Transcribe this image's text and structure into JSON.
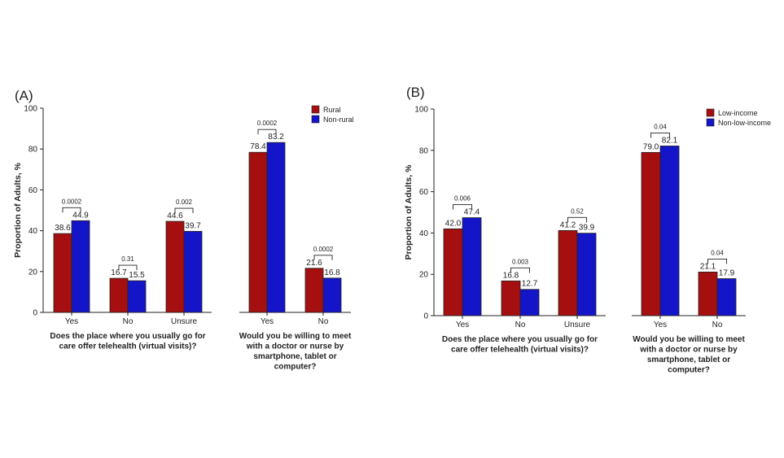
{
  "chart_data": [
    {
      "type": "bar",
      "panel_label": "(A)",
      "ylabel": "Proportion of Adults, %",
      "ylim": [
        0,
        100
      ],
      "yticks": [
        "0",
        "20",
        "40",
        "60",
        "80",
        "100"
      ],
      "grid": false,
      "legend_position": "top-right",
      "colors": [
        "#a50f0f",
        "#1414c8"
      ],
      "series_names": [
        "Rural",
        "Non-rural"
      ],
      "groups": [
        {
          "question": [
            "Does the place where you usually go for",
            "care offer telehealth (virtual visits)?"
          ],
          "categories": [
            {
              "label": "Yes",
              "values": [
                38.6,
                44.9
              ],
              "value_labels": [
                "38.6",
                "44.9"
              ],
              "p_value": "0.0002"
            },
            {
              "label": "No",
              "values": [
                16.7,
                15.5
              ],
              "value_labels": [
                "16.7",
                "15.5"
              ],
              "p_value": "0.31"
            },
            {
              "label": "Unsure",
              "values": [
                44.6,
                39.7
              ],
              "value_labels": [
                "44.6",
                "39.7"
              ],
              "p_value": "0.002"
            }
          ]
        },
        {
          "question": [
            "Would you be willing to meet",
            "with a doctor or nurse by",
            "smartphone, tablet or",
            "computer?"
          ],
          "categories": [
            {
              "label": "Yes",
              "values": [
                78.4,
                83.2
              ],
              "value_labels": [
                "78.4",
                "83.2"
              ],
              "p_value": "0.0002"
            },
            {
              "label": "No",
              "values": [
                21.6,
                16.8
              ],
              "value_labels": [
                "21.6",
                "16.8"
              ],
              "p_value": "0.0002"
            }
          ]
        }
      ]
    },
    {
      "type": "bar",
      "panel_label": "(B)",
      "ylabel": "Proportion of Adults, %",
      "ylim": [
        0,
        100
      ],
      "yticks": [
        "0",
        "20",
        "40",
        "60",
        "80",
        "100"
      ],
      "grid": false,
      "legend_position": "top-right",
      "colors": [
        "#a50f0f",
        "#1414c8"
      ],
      "series_names": [
        "Low-income",
        "Non-low-income"
      ],
      "groups": [
        {
          "question": [
            "Does the place where you usually go for",
            "care offer telehealth (virtual visits)?"
          ],
          "categories": [
            {
              "label": "Yes",
              "values": [
                42.0,
                47.4
              ],
              "value_labels": [
                "42.0",
                "47.4"
              ],
              "p_value": "0.006"
            },
            {
              "label": "No",
              "values": [
                16.8,
                12.7
              ],
              "value_labels": [
                "16.8",
                "12.7"
              ],
              "p_value": "0.003"
            },
            {
              "label": "Unsure",
              "values": [
                41.2,
                39.9
              ],
              "value_labels": [
                "41.2",
                "39.9"
              ],
              "p_value": "0.52"
            }
          ]
        },
        {
          "question": [
            "Would you be willing to meet",
            "with a doctor or nurse by",
            "smartphone, tablet or",
            "computer?"
          ],
          "categories": [
            {
              "label": "Yes",
              "values": [
                79.0,
                82.1
              ],
              "value_labels": [
                "79.0",
                "82.1"
              ],
              "p_value": "0.04"
            },
            {
              "label": "No",
              "values": [
                21.1,
                17.9
              ],
              "value_labels": [
                "21.1",
                "17.9"
              ],
              "p_value": "0.04"
            }
          ]
        }
      ]
    }
  ]
}
